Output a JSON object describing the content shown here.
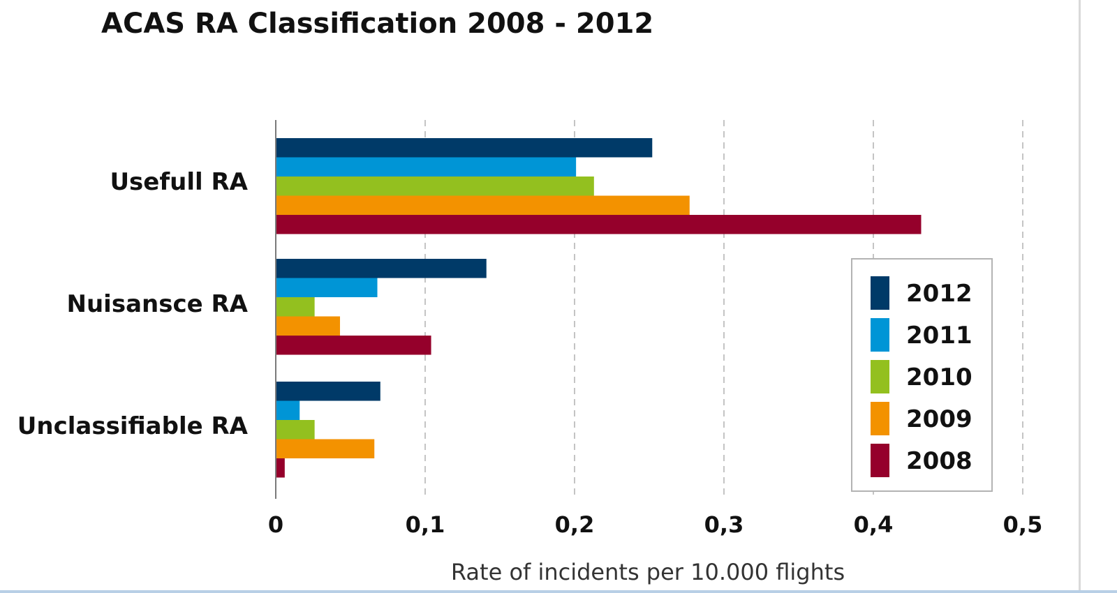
{
  "chart_data": {
    "type": "bar",
    "orientation": "horizontal",
    "title": "ACAS RA Classification 2008 - 2012",
    "xlabel": "Rate of incidents per 10.000 flights",
    "ylabel": "",
    "xlim": [
      0,
      0.5
    ],
    "x_ticks": [
      "0",
      "0,1",
      "0,2",
      "0,3",
      "0,4",
      "0,5"
    ],
    "grid": "vertical dashed",
    "legend_position": "lower-right",
    "categories": [
      "Usefull RA",
      "Nuisansce RA",
      "Unclassifiable RA"
    ],
    "series": [
      {
        "name": "2012",
        "color": "#003a68",
        "values": [
          0.252,
          0.141,
          0.07
        ]
      },
      {
        "name": "2011",
        "color": "#0095d6",
        "values": [
          0.201,
          0.068,
          0.016
        ]
      },
      {
        "name": "2010",
        "color": "#93c01f",
        "values": [
          0.213,
          0.026,
          0.026
        ]
      },
      {
        "name": "2009",
        "color": "#f39200",
        "values": [
          0.277,
          0.043,
          0.066
        ]
      },
      {
        "name": "2008",
        "color": "#95002b",
        "values": [
          0.432,
          0.104,
          0.006
        ]
      }
    ]
  }
}
